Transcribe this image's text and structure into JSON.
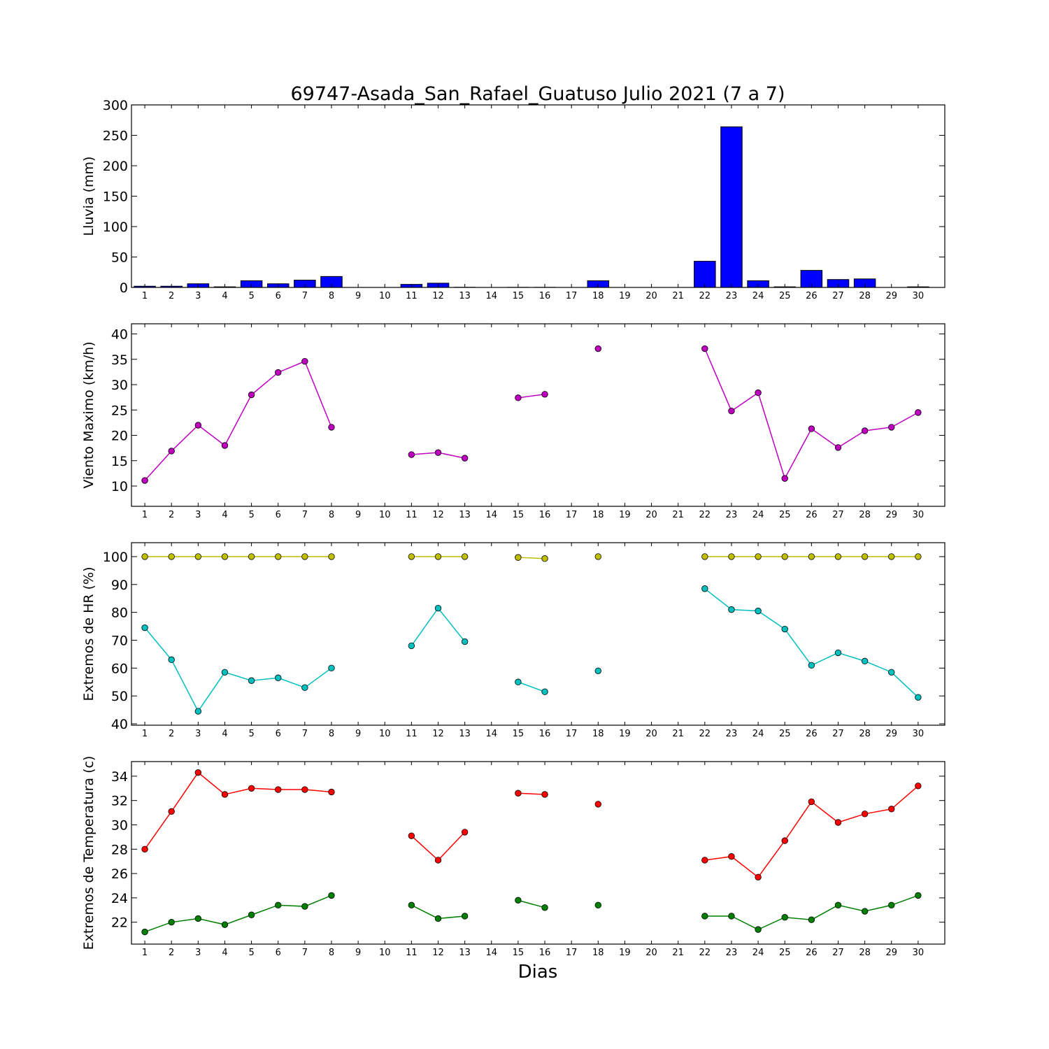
{
  "title": "69747-Asada_San_Rafael_Guatuso Julio 2021  (7 a 7)",
  "xlabel": "Dias",
  "chart_data": [
    {
      "type": "bar",
      "ylabel": "Lluvia (mm)",
      "ylim": [
        0,
        300
      ],
      "yticks": [
        0,
        50,
        100,
        150,
        200,
        250,
        300
      ],
      "categories": [
        "1",
        "2",
        "3",
        "4",
        "5",
        "6",
        "7",
        "8",
        "9",
        "10",
        "11",
        "12",
        "13",
        "14",
        "15",
        "16",
        "17",
        "18",
        "19",
        "20",
        "21",
        "22",
        "23",
        "24",
        "25",
        "26",
        "27",
        "28",
        "29",
        "30"
      ],
      "series": [
        {
          "color": "#0000ff",
          "values": [
            2,
            2,
            6,
            1,
            11,
            6,
            12,
            18,
            null,
            0,
            5,
            7,
            0.3,
            0,
            0.2,
            0.2,
            0,
            11,
            0,
            0,
            0,
            43,
            264,
            11,
            1,
            28,
            13,
            14,
            0,
            1
          ]
        }
      ]
    },
    {
      "type": "line",
      "ylabel": "Viento Maximo (km/h)",
      "ylim": [
        6,
        42
      ],
      "yticks": [
        10,
        15,
        20,
        25,
        30,
        35,
        40
      ],
      "categories": [
        "1",
        "2",
        "3",
        "4",
        "5",
        "6",
        "7",
        "8",
        "9",
        "10",
        "11",
        "12",
        "13",
        "14",
        "15",
        "16",
        "17",
        "18",
        "19",
        "20",
        "21",
        "22",
        "23",
        "24",
        "25",
        "26",
        "27",
        "28",
        "29",
        "30"
      ],
      "series": [
        {
          "color": "#bf00bf",
          "values": [
            11.1,
            16.9,
            22.0,
            18.0,
            28.0,
            32.4,
            34.6,
            21.6,
            null,
            null,
            16.2,
            16.6,
            15.5,
            null,
            27.4,
            28.1,
            null,
            37.1,
            null,
            null,
            null,
            37.1,
            24.8,
            28.4,
            11.5,
            21.3,
            17.6,
            20.9,
            21.6,
            24.5
          ]
        }
      ]
    },
    {
      "type": "line",
      "ylabel": "Extremos de HR (%)",
      "ylim": [
        39.5,
        105
      ],
      "yticks": [
        40,
        50,
        60,
        70,
        80,
        90,
        100
      ],
      "categories": [
        "1",
        "2",
        "3",
        "4",
        "5",
        "6",
        "7",
        "8",
        "9",
        "10",
        "11",
        "12",
        "13",
        "14",
        "15",
        "16",
        "17",
        "18",
        "19",
        "20",
        "21",
        "22",
        "23",
        "24",
        "25",
        "26",
        "27",
        "28",
        "29",
        "30"
      ],
      "series": [
        {
          "color": "#bfbf00",
          "values": [
            100,
            100,
            100,
            100,
            100,
            100,
            100,
            100,
            null,
            null,
            100,
            100,
            100,
            null,
            99.7,
            99.3,
            null,
            100,
            null,
            null,
            null,
            100,
            100,
            100,
            100,
            100,
            100,
            100,
            100,
            100
          ]
        },
        {
          "color": "#00bfbf",
          "values": [
            74.5,
            63,
            44.5,
            58.5,
            55.5,
            56.5,
            53,
            60,
            null,
            null,
            68,
            81.5,
            69.5,
            null,
            55,
            51.5,
            null,
            59,
            null,
            null,
            null,
            88.5,
            81,
            80.5,
            74,
            61,
            65.5,
            62.5,
            58.5,
            49.5
          ]
        }
      ]
    },
    {
      "type": "line",
      "ylabel": "Extremos de Temperatura (c)",
      "ylim": [
        20.2,
        35.2
      ],
      "yticks": [
        22,
        24,
        26,
        28,
        30,
        32,
        34
      ],
      "categories": [
        "1",
        "2",
        "3",
        "4",
        "5",
        "6",
        "7",
        "8",
        "9",
        "10",
        "11",
        "12",
        "13",
        "14",
        "15",
        "16",
        "17",
        "18",
        "19",
        "20",
        "21",
        "22",
        "23",
        "24",
        "25",
        "26",
        "27",
        "28",
        "29",
        "30"
      ],
      "series": [
        {
          "color": "#ff0000",
          "values": [
            28.0,
            31.1,
            34.3,
            32.5,
            33.0,
            32.9,
            32.9,
            32.7,
            null,
            null,
            29.1,
            27.1,
            29.4,
            null,
            32.6,
            32.5,
            null,
            31.7,
            null,
            null,
            null,
            27.1,
            27.4,
            25.7,
            28.7,
            31.9,
            30.2,
            30.9,
            31.3,
            33.2
          ]
        },
        {
          "color": "#007f00",
          "values": [
            21.2,
            22.0,
            22.3,
            21.8,
            22.6,
            23.4,
            23.3,
            24.2,
            null,
            null,
            23.4,
            22.3,
            22.5,
            null,
            23.8,
            23.2,
            null,
            23.4,
            null,
            null,
            null,
            22.5,
            22.5,
            21.4,
            22.4,
            22.2,
            23.4,
            22.9,
            23.4,
            24.2
          ]
        }
      ]
    }
  ]
}
